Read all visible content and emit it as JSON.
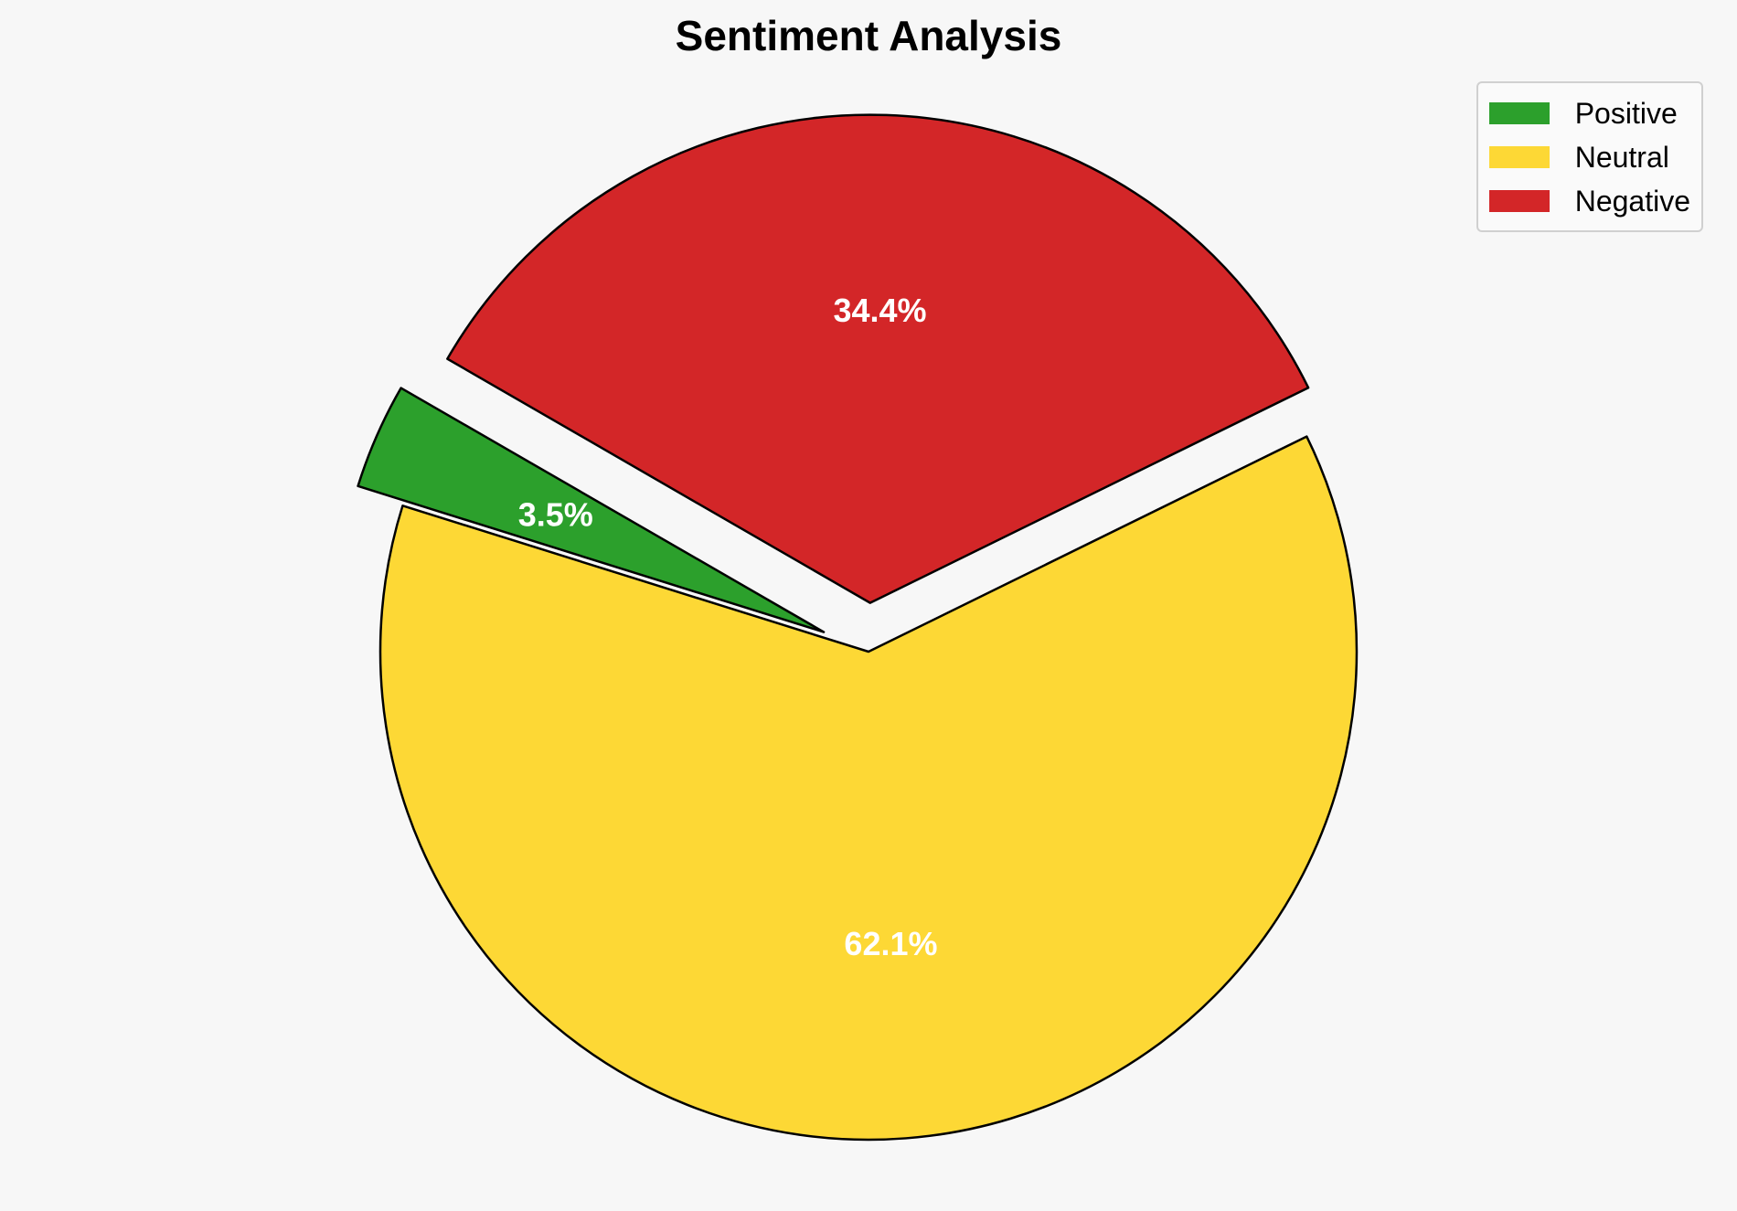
{
  "chart_data": {
    "type": "pie",
    "title": "Sentiment Analysis",
    "categories": [
      "Positive",
      "Neutral",
      "Negative"
    ],
    "values": [
      3.5,
      62.1,
      34.4
    ],
    "labels": [
      "3.5%",
      "62.1%",
      "34.4%"
    ],
    "colors": [
      "#2ca02c",
      "#fdd835",
      "#d32628"
    ],
    "exploded": [
      "Positive",
      "Negative"
    ],
    "legend_position": "top-right"
  }
}
